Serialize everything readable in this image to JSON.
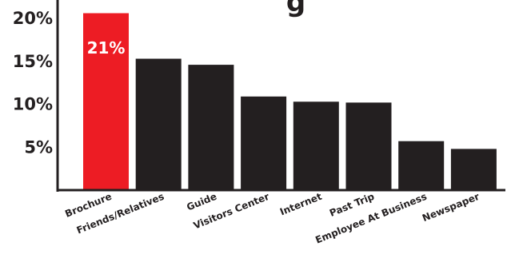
{
  "chart_data": {
    "type": "bar",
    "title_fragment": "g",
    "categories": [
      "Brochure",
      "Friends/Relatives",
      "Guide",
      "Visitors Center",
      "Internet",
      "Past Trip",
      "Employee At Business",
      "Newspaper"
    ],
    "values": [
      20.6,
      15.3,
      14.6,
      10.9,
      10.3,
      10.2,
      5.7,
      4.8
    ],
    "y_ticks": [
      {
        "value": 5,
        "label": "5%"
      },
      {
        "value": 10,
        "label": "10%"
      },
      {
        "value": 15,
        "label": "15%"
      },
      {
        "value": 20,
        "label": "20%"
      }
    ],
    "ylim": [
      0,
      22
    ],
    "grid": false,
    "highlight_index": 0,
    "highlight_label": "21%",
    "colors": {
      "bar": "#231f20",
      "highlight": "#ed1c24",
      "axis": "#231f20",
      "highlight_text": "#ffffff"
    }
  }
}
